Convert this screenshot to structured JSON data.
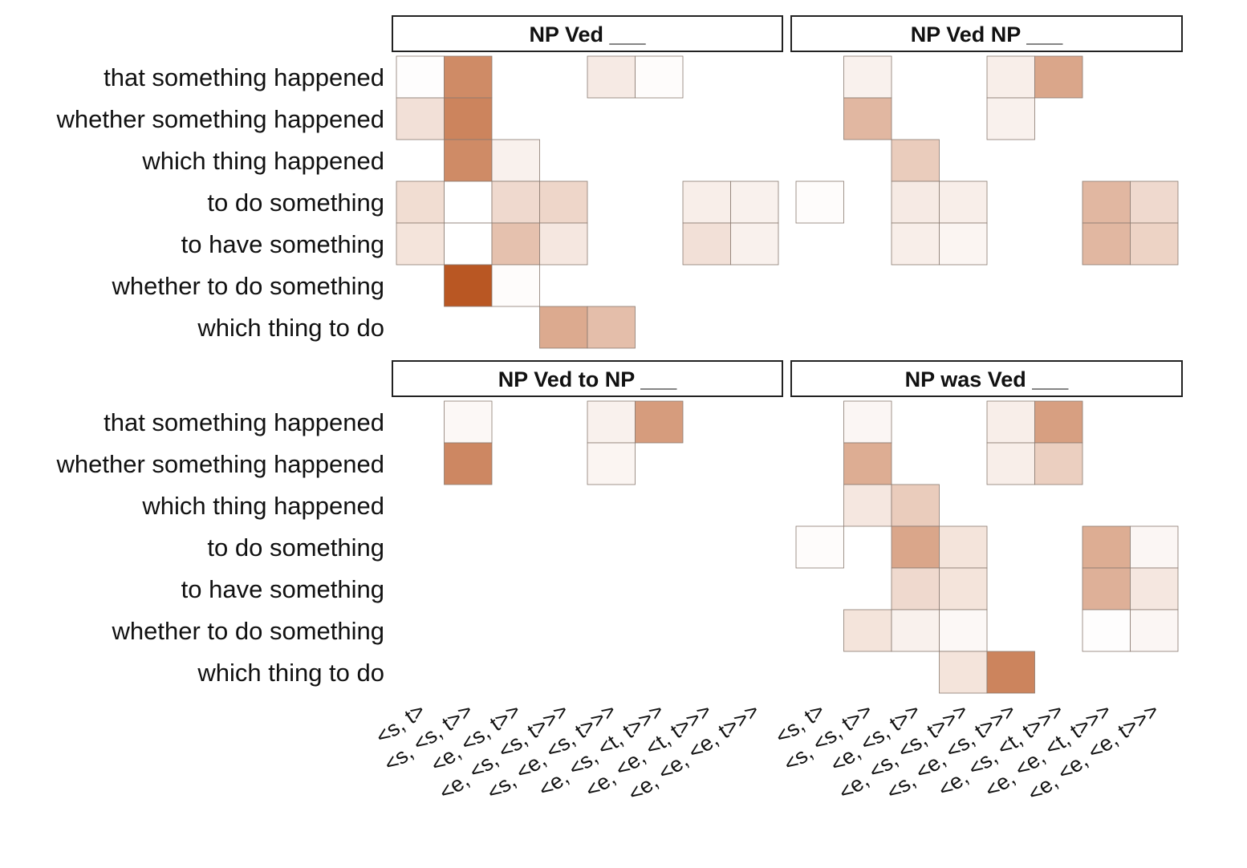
{
  "chart_data": {
    "type": "heatmap",
    "rows": [
      "that something happened",
      "whether something happened",
      "which thing happened",
      "to do something",
      "to have something",
      "whether to do something",
      "which thing to do"
    ],
    "columns": [
      "<s, t>",
      "<s, <s, t>>",
      "<e, <s, t>>",
      "<e, <s, <s, t>>>",
      "<s, <e, <s, t>>>",
      "<e, <s, <t, t>>>",
      "<e, <e, <t, t>>>",
      "<e, <e, <e, t>>>"
    ],
    "color_scale": {
      "low": "#ffffff",
      "high": "#b8541e"
    },
    "facets": [
      {
        "title": "NP Ved ___",
        "cells": [
          {
            "row": 0,
            "col": 0,
            "value": 0.01
          },
          {
            "row": 0,
            "col": 1,
            "value": 0.68
          },
          {
            "row": 0,
            "col": 4,
            "value": 0.12
          },
          {
            "row": 0,
            "col": 5,
            "value": 0.02
          },
          {
            "row": 1,
            "col": 0,
            "value": 0.18
          },
          {
            "row": 1,
            "col": 1,
            "value": 0.72
          },
          {
            "row": 2,
            "col": 1,
            "value": 0.68
          },
          {
            "row": 2,
            "col": 2,
            "value": 0.08
          },
          {
            "row": 3,
            "col": 0,
            "value": 0.2
          },
          {
            "row": 3,
            "col": 1,
            "value": 0.0
          },
          {
            "row": 3,
            "col": 2,
            "value": 0.22
          },
          {
            "row": 3,
            "col": 3,
            "value": 0.24
          },
          {
            "row": 3,
            "col": 6,
            "value": 0.1
          },
          {
            "row": 3,
            "col": 7,
            "value": 0.08
          },
          {
            "row": 4,
            "col": 0,
            "value": 0.16
          },
          {
            "row": 4,
            "col": 1,
            "value": 0.0
          },
          {
            "row": 4,
            "col": 2,
            "value": 0.36
          },
          {
            "row": 4,
            "col": 3,
            "value": 0.14
          },
          {
            "row": 4,
            "col": 6,
            "value": 0.18
          },
          {
            "row": 4,
            "col": 7,
            "value": 0.08
          },
          {
            "row": 5,
            "col": 1,
            "value": 0.98
          },
          {
            "row": 5,
            "col": 2,
            "value": 0.02
          },
          {
            "row": 6,
            "col": 3,
            "value": 0.5
          },
          {
            "row": 6,
            "col": 4,
            "value": 0.38
          }
        ]
      },
      {
        "title": "NP Ved NP ___",
        "cells": [
          {
            "row": 0,
            "col": 1,
            "value": 0.08
          },
          {
            "row": 0,
            "col": 4,
            "value": 0.1
          },
          {
            "row": 0,
            "col": 5,
            "value": 0.52
          },
          {
            "row": 1,
            "col": 1,
            "value": 0.42
          },
          {
            "row": 1,
            "col": 4,
            "value": 0.08
          },
          {
            "row": 2,
            "col": 2,
            "value": 0.3
          },
          {
            "row": 3,
            "col": 0,
            "value": 0.02
          },
          {
            "row": 3,
            "col": 2,
            "value": 0.12
          },
          {
            "row": 3,
            "col": 3,
            "value": 0.1
          },
          {
            "row": 3,
            "col": 6,
            "value": 0.42
          },
          {
            "row": 3,
            "col": 7,
            "value": 0.22
          },
          {
            "row": 4,
            "col": 2,
            "value": 0.1
          },
          {
            "row": 4,
            "col": 3,
            "value": 0.06
          },
          {
            "row": 4,
            "col": 6,
            "value": 0.42
          },
          {
            "row": 4,
            "col": 7,
            "value": 0.26
          }
        ]
      },
      {
        "title": "NP Ved to NP ___",
        "cells": [
          {
            "row": 0,
            "col": 1,
            "value": 0.04
          },
          {
            "row": 0,
            "col": 4,
            "value": 0.08
          },
          {
            "row": 0,
            "col": 5,
            "value": 0.58
          },
          {
            "row": 1,
            "col": 1,
            "value": 0.7
          },
          {
            "row": 1,
            "col": 4,
            "value": 0.06
          }
        ]
      },
      {
        "title": "NP was Ved ___",
        "cells": [
          {
            "row": 0,
            "col": 1,
            "value": 0.05
          },
          {
            "row": 0,
            "col": 4,
            "value": 0.1
          },
          {
            "row": 0,
            "col": 5,
            "value": 0.56
          },
          {
            "row": 1,
            "col": 1,
            "value": 0.48
          },
          {
            "row": 1,
            "col": 4,
            "value": 0.1
          },
          {
            "row": 1,
            "col": 5,
            "value": 0.28
          },
          {
            "row": 2,
            "col": 1,
            "value": 0.14
          },
          {
            "row": 2,
            "col": 2,
            "value": 0.3
          },
          {
            "row": 3,
            "col": 0,
            "value": 0.02
          },
          {
            "row": 3,
            "col": 2,
            "value": 0.52
          },
          {
            "row": 3,
            "col": 3,
            "value": 0.16
          },
          {
            "row": 3,
            "col": 6,
            "value": 0.48
          },
          {
            "row": 3,
            "col": 7,
            "value": 0.05
          },
          {
            "row": 4,
            "col": 2,
            "value": 0.22
          },
          {
            "row": 4,
            "col": 3,
            "value": 0.16
          },
          {
            "row": 4,
            "col": 6,
            "value": 0.46
          },
          {
            "row": 4,
            "col": 7,
            "value": 0.14
          },
          {
            "row": 5,
            "col": 1,
            "value": 0.16
          },
          {
            "row": 5,
            "col": 2,
            "value": 0.08
          },
          {
            "row": 5,
            "col": 3,
            "value": 0.04
          },
          {
            "row": 5,
            "col": 6,
            "value": 0.01
          },
          {
            "row": 5,
            "col": 7,
            "value": 0.05
          },
          {
            "row": 6,
            "col": 3,
            "value": 0.16
          },
          {
            "row": 6,
            "col": 4,
            "value": 0.72
          }
        ]
      }
    ]
  }
}
